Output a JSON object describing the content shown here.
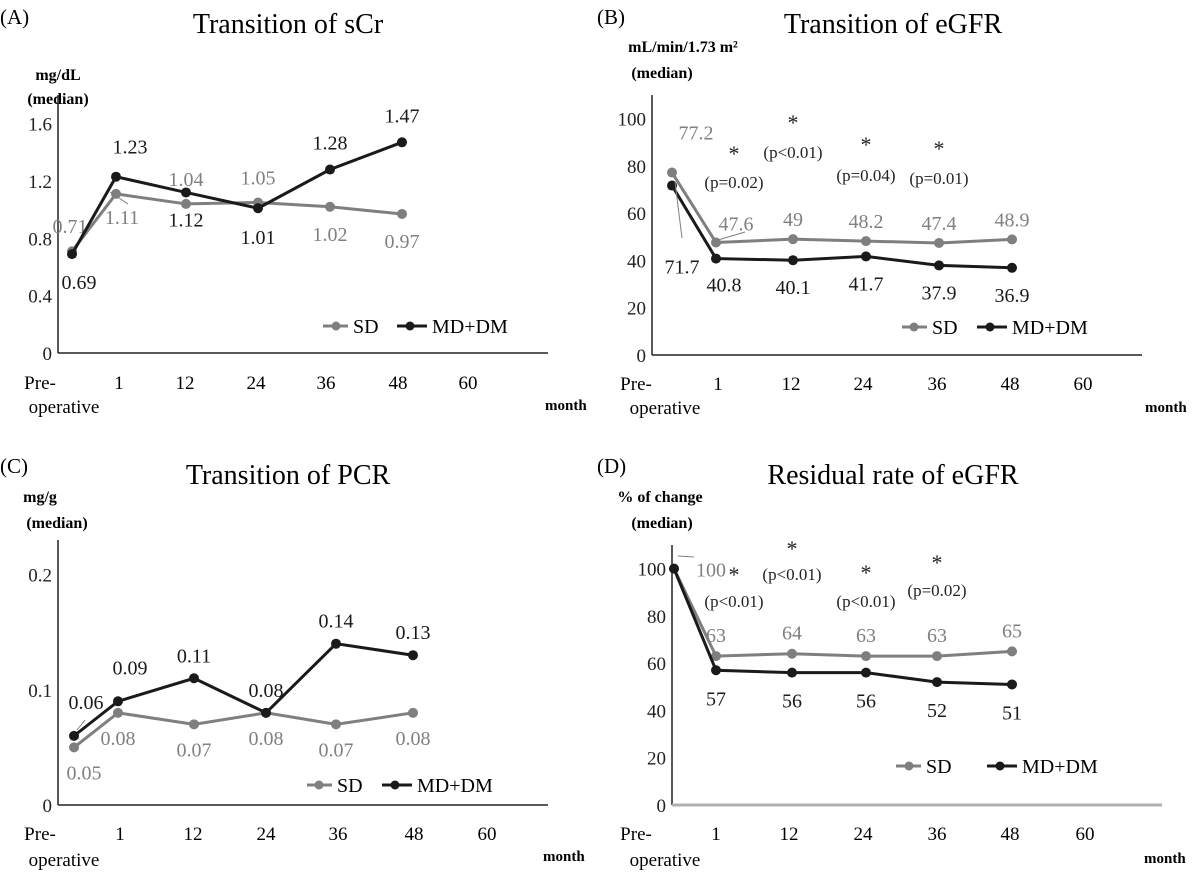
{
  "figure": {
    "x_categories": [
      "Pre-",
      "1",
      "12",
      "24",
      "36",
      "48",
      "60"
    ],
    "x_category_second_line": "operative",
    "x_unit": "month",
    "legend": {
      "sd": "SD",
      "mddm": "MD+DM"
    },
    "colors": {
      "sd": "#7f7f7f",
      "mddm": "#1a1a1a",
      "axis": "#222222",
      "sd_label": "#808080"
    }
  },
  "chart_data": [
    {
      "panel": "(A)",
      "type": "line",
      "title": "Transition of sCr",
      "ylabel": [
        "mg/dL",
        "(median)"
      ],
      "ylim": [
        0,
        1.8
      ],
      "yticks": [
        "0",
        "0.4",
        "0.8",
        "1.2",
        "1.6"
      ],
      "ytick_values": [
        0,
        0.4,
        0.8,
        1.2,
        1.6
      ],
      "categories": [
        "Pre-operative",
        "1",
        "12",
        "24",
        "36",
        "48"
      ],
      "series": [
        {
          "name": "SD",
          "values": [
            0.71,
            1.11,
            1.04,
            1.05,
            1.02,
            0.97
          ],
          "labels": [
            "0.71",
            "1.11",
            "1.04",
            "1.05",
            "1.02",
            "0.97"
          ]
        },
        {
          "name": "MD+DM",
          "values": [
            0.69,
            1.23,
            1.12,
            1.01,
            1.28,
            1.47
          ],
          "labels": [
            "0.69",
            "1.23",
            "1.12",
            "1.01",
            "1.28",
            "1.47"
          ]
        }
      ],
      "significance": []
    },
    {
      "panel": "(B)",
      "type": "line",
      "title": "Transition of eGFR",
      "ylabel": [
        "mL/min/1.73 m²",
        "(median)"
      ],
      "ylim": [
        0,
        110
      ],
      "yticks": [
        "0",
        "20",
        "40",
        "60",
        "80",
        "100"
      ],
      "ytick_values": [
        0,
        20,
        40,
        60,
        80,
        100
      ],
      "categories": [
        "Pre-operative",
        "1",
        "12",
        "24",
        "36",
        "48"
      ],
      "series": [
        {
          "name": "SD",
          "values": [
            77.2,
            47.6,
            49,
            48.2,
            47.4,
            48.9
          ],
          "labels": [
            "77.2",
            "47.6",
            "49",
            "48.2",
            "47.4",
            "48.9"
          ]
        },
        {
          "name": "MD+DM",
          "values": [
            71.7,
            40.8,
            40.1,
            41.7,
            37.9,
            36.9
          ],
          "labels": [
            "71.7",
            "40.8",
            "40.1",
            "41.7",
            "37.9",
            "36.9"
          ]
        }
      ],
      "significance": [
        {
          "category": "1",
          "star": "*",
          "p": "(p=0.02)"
        },
        {
          "category": "12",
          "star": "*",
          "p": "(p<0.01)"
        },
        {
          "category": "24",
          "star": "*",
          "p": "(p=0.04)"
        },
        {
          "category": "36",
          "star": "*",
          "p": "(p=0.01)"
        }
      ]
    },
    {
      "panel": "(C)",
      "type": "line",
      "title": "Transition of PCR",
      "ylabel": [
        "mg/g",
        "(median)"
      ],
      "ylim": [
        0,
        0.23
      ],
      "yticks": [
        "0",
        "0.1",
        "0.2"
      ],
      "ytick_values": [
        0,
        0.1,
        0.2
      ],
      "categories": [
        "Pre-operative",
        "1",
        "12",
        "24",
        "36",
        "48"
      ],
      "series": [
        {
          "name": "SD",
          "values": [
            0.05,
            0.08,
            0.07,
            0.08,
            0.07,
            0.08
          ],
          "labels": [
            "0.05",
            "0.08",
            "0.07",
            "0.08",
            "0.07",
            "0.08"
          ]
        },
        {
          "name": "MD+DM",
          "values": [
            0.06,
            0.09,
            0.11,
            0.08,
            0.14,
            0.13
          ],
          "labels": [
            "0.06",
            "0.09",
            "0.11",
            "0.08",
            "0.14",
            "0.13"
          ]
        }
      ],
      "significance": []
    },
    {
      "panel": "(D)",
      "type": "line",
      "title": "Residual rate of eGFR",
      "ylabel": [
        "% of change",
        "(median)"
      ],
      "ylim": [
        0,
        110
      ],
      "yticks": [
        "0",
        "20",
        "40",
        "60",
        "80",
        "100"
      ],
      "ytick_values": [
        0,
        20,
        40,
        60,
        80,
        100
      ],
      "categories": [
        "Pre-operative",
        "1",
        "12",
        "24",
        "36",
        "48"
      ],
      "series": [
        {
          "name": "SD",
          "values": [
            100,
            63,
            64,
            63,
            63,
            65
          ],
          "labels": [
            "100",
            "63",
            "64",
            "63",
            "63",
            "65"
          ]
        },
        {
          "name": "MD+DM",
          "values": [
            100,
            57,
            56,
            56,
            52,
            51
          ],
          "labels": [
            "",
            "57",
            "56",
            "56",
            "52",
            "51"
          ]
        }
      ],
      "significance": [
        {
          "category": "1",
          "star": "*",
          "p": "(p<0.01)"
        },
        {
          "category": "12",
          "star": "*",
          "p": "(p<0.01)"
        },
        {
          "category": "24",
          "star": "*",
          "p": "(p<0.01)"
        },
        {
          "category": "36",
          "star": "*",
          "p": "(p=0.02)"
        }
      ]
    }
  ]
}
